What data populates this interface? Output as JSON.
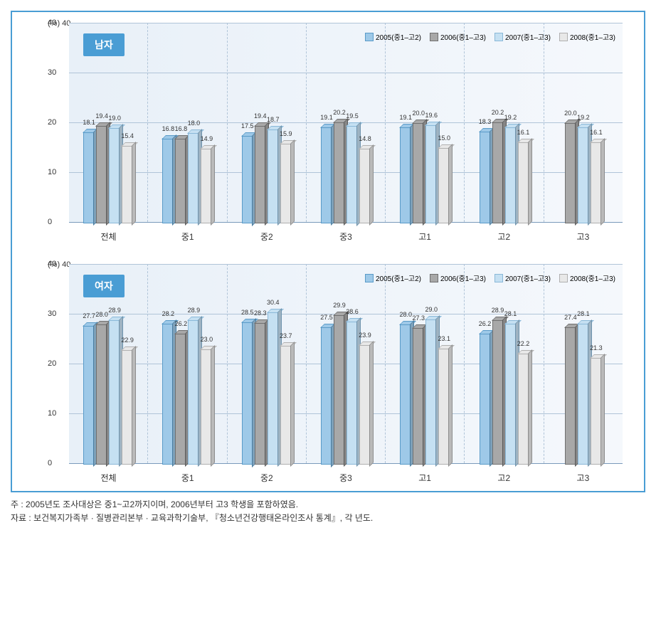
{
  "colors": {
    "border": "#4a9dd4",
    "title_bg": "#4a9dd4",
    "bg_light": "#ffffff",
    "plot_bg": "#e8f0f8",
    "grid": "#b0c4d8",
    "series": [
      "#9ec9e8",
      "#a8a8a8",
      "#c5e0f2",
      "#e8e8e8"
    ],
    "series_border": [
      "#5a9bc8",
      "#707070",
      "#8ab8d8",
      "#b0b0b0"
    ]
  },
  "y_axis": {
    "label": "(%) 40",
    "max": 40,
    "ticks": [
      0,
      10,
      20,
      30,
      40
    ]
  },
  "legend_items": [
    "2005(중1–고2)",
    "2006(중1–고3)",
    "2007(중1–고3)",
    "2008(중1–고3)"
  ],
  "categories": [
    "전체",
    "중1",
    "중2",
    "중3",
    "고1",
    "고2",
    "고3"
  ],
  "panels": [
    {
      "title": "남자",
      "data": [
        [
          18.1,
          19.4,
          19.0,
          15.4
        ],
        [
          16.8,
          16.8,
          18.0,
          14.9
        ],
        [
          17.5,
          19.4,
          18.7,
          15.9
        ],
        [
          19.1,
          20.2,
          19.5,
          14.8
        ],
        [
          19.1,
          20.0,
          19.6,
          15.0
        ],
        [
          18.3,
          20.2,
          19.2,
          16.1
        ],
        [
          null,
          20.0,
          19.2,
          16.1
        ]
      ]
    },
    {
      "title": "여자",
      "data": [
        [
          27.7,
          28.0,
          28.9,
          22.9
        ],
        [
          28.2,
          26.2,
          28.9,
          23.0
        ],
        [
          28.5,
          28.3,
          30.4,
          23.7
        ],
        [
          27.5,
          29.9,
          28.6,
          23.9
        ],
        [
          28.0,
          27.3,
          29.0,
          23.1
        ],
        [
          26.2,
          28.9,
          28.1,
          22.2
        ],
        [
          null,
          27.4,
          28.1,
          21.3
        ]
      ]
    }
  ],
  "footnotes": [
    "주 : 2005년도 조사대상은 중1~고2까지이며, 2006년부터 고3 학생을 포함하였음.",
    "자료 : 보건복지가족부 · 질병관리본부 · 교육과학기술부, 『청소년건강행태온라인조사 통계』, 각 년도."
  ]
}
